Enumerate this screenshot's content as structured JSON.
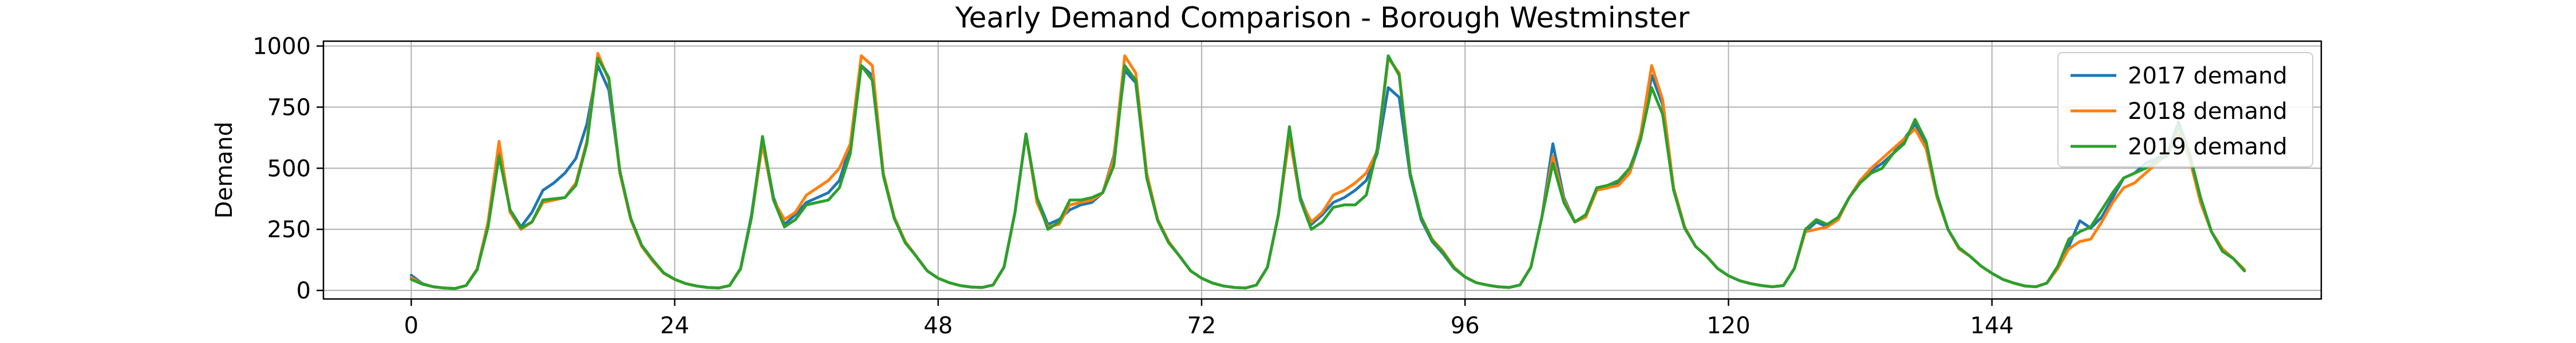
{
  "chart_data": {
    "type": "line",
    "title": "Yearly Demand Comparison - Borough Westminster",
    "xlabel": "",
    "ylabel": "Demand",
    "xlim": [
      -8,
      174
    ],
    "ylim": [
      -35,
      1020
    ],
    "xticks": [
      0,
      24,
      48,
      72,
      96,
      120,
      144
    ],
    "yticks": [
      0,
      250,
      500,
      750,
      1000
    ],
    "grid": true,
    "legend_position": "top-right",
    "colors": {
      "2017 demand": "#1f77b4",
      "2018 demand": "#ff7f0e",
      "2019 demand": "#2ca02c"
    },
    "series": [
      {
        "name": "2017 demand",
        "color": "#1f77b4",
        "values": [
          62,
          28,
          15,
          10,
          8,
          20,
          85,
          270,
          570,
          330,
          260,
          320,
          410,
          440,
          480,
          540,
          680,
          920,
          820,
          490,
          290,
          180,
          120,
          70,
          45,
          28,
          18,
          12,
          10,
          20,
          90,
          310,
          620,
          380,
          270,
          310,
          360,
          380,
          400,
          450,
          590,
          920,
          880,
          480,
          300,
          200,
          140,
          80,
          50,
          32,
          20,
          14,
          12,
          22,
          95,
          320,
          640,
          380,
          270,
          290,
          330,
          350,
          360,
          400,
          550,
          900,
          850,
          470,
          290,
          200,
          140,
          80,
          50,
          30,
          18,
          12,
          10,
          22,
          95,
          310,
          660,
          380,
          270,
          310,
          360,
          380,
          410,
          450,
          560,
          830,
          790,
          470,
          290,
          200,
          150,
          90,
          55,
          32,
          22,
          15,
          12,
          22,
          95,
          300,
          600,
          380,
          280,
          310,
          410,
          430,
          440,
          480,
          620,
          880,
          760,
          420,
          260,
          180,
          140,
          90,
          60,
          40,
          28,
          20,
          15,
          20,
          90,
          240,
          280,
          260,
          300,
          380,
          450,
          490,
          520,
          560,
          620,
          680,
          600,
          390,
          250,
          170,
          140,
          100,
          70,
          45,
          30,
          18,
          15,
          30,
          90,
          180,
          285,
          255,
          300,
          380,
          460,
          480,
          520,
          540,
          560,
          690,
          560,
          380,
          240,
          170,
          130,
          80
        ]
      },
      {
        "name": "2018 demand",
        "color": "#ff7f0e",
        "values": [
          52,
          26,
          15,
          10,
          8,
          20,
          88,
          280,
          610,
          320,
          250,
          280,
          360,
          370,
          380,
          440,
          610,
          970,
          860,
          480,
          290,
          180,
          120,
          70,
          45,
          28,
          18,
          12,
          10,
          20,
          88,
          300,
          600,
          370,
          290,
          320,
          390,
          420,
          450,
          500,
          600,
          960,
          920,
          480,
          300,
          200,
          140,
          80,
          50,
          32,
          20,
          14,
          12,
          22,
          95,
          320,
          640,
          360,
          260,
          270,
          350,
          360,
          370,
          400,
          540,
          960,
          890,
          480,
          290,
          200,
          140,
          80,
          50,
          30,
          18,
          12,
          10,
          22,
          95,
          310,
          630,
          370,
          280,
          320,
          390,
          410,
          440,
          480,
          570,
          950,
          890,
          480,
          300,
          210,
          160,
          95,
          55,
          32,
          22,
          15,
          12,
          22,
          95,
          300,
          550,
          370,
          280,
          300,
          410,
          420,
          430,
          480,
          640,
          920,
          780,
          420,
          260,
          180,
          140,
          90,
          60,
          40,
          28,
          20,
          15,
          20,
          90,
          240,
          250,
          260,
          290,
          380,
          450,
          500,
          540,
          580,
          620,
          660,
          580,
          380,
          250,
          170,
          140,
          100,
          70,
          45,
          30,
          18,
          15,
          30,
          90,
          170,
          200,
          210,
          280,
          360,
          420,
          440,
          480,
          520,
          560,
          640,
          540,
          360,
          240,
          170,
          130,
          85
        ]
      },
      {
        "name": "2019 demand",
        "color": "#2ca02c",
        "values": [
          45,
          26,
          15,
          10,
          8,
          20,
          85,
          260,
          550,
          330,
          255,
          280,
          370,
          375,
          380,
          430,
          600,
          950,
          870,
          490,
          295,
          185,
          125,
          72,
          46,
          28,
          18,
          12,
          10,
          20,
          88,
          300,
          630,
          370,
          260,
          290,
          350,
          360,
          370,
          420,
          560,
          920,
          860,
          470,
          295,
          195,
          140,
          80,
          50,
          32,
          20,
          14,
          12,
          22,
          95,
          320,
          640,
          380,
          250,
          280,
          370,
          370,
          380,
          400,
          510,
          920,
          860,
          460,
          285,
          195,
          140,
          80,
          50,
          30,
          18,
          12,
          10,
          22,
          95,
          310,
          670,
          370,
          250,
          280,
          340,
          350,
          350,
          390,
          580,
          960,
          880,
          480,
          300,
          205,
          155,
          92,
          55,
          32,
          22,
          15,
          12,
          22,
          95,
          300,
          520,
          360,
          280,
          310,
          420,
          430,
          450,
          500,
          620,
          830,
          720,
          410,
          255,
          180,
          140,
          90,
          60,
          40,
          28,
          20,
          15,
          20,
          90,
          250,
          290,
          270,
          300,
          380,
          440,
          480,
          500,
          560,
          600,
          700,
          610,
          390,
          250,
          175,
          140,
          100,
          70,
          45,
          30,
          18,
          15,
          30,
          100,
          210,
          240,
          260,
          330,
          400,
          460,
          480,
          500,
          530,
          550,
          670,
          560,
          380,
          240,
          160,
          130,
          80
        ]
      }
    ]
  }
}
